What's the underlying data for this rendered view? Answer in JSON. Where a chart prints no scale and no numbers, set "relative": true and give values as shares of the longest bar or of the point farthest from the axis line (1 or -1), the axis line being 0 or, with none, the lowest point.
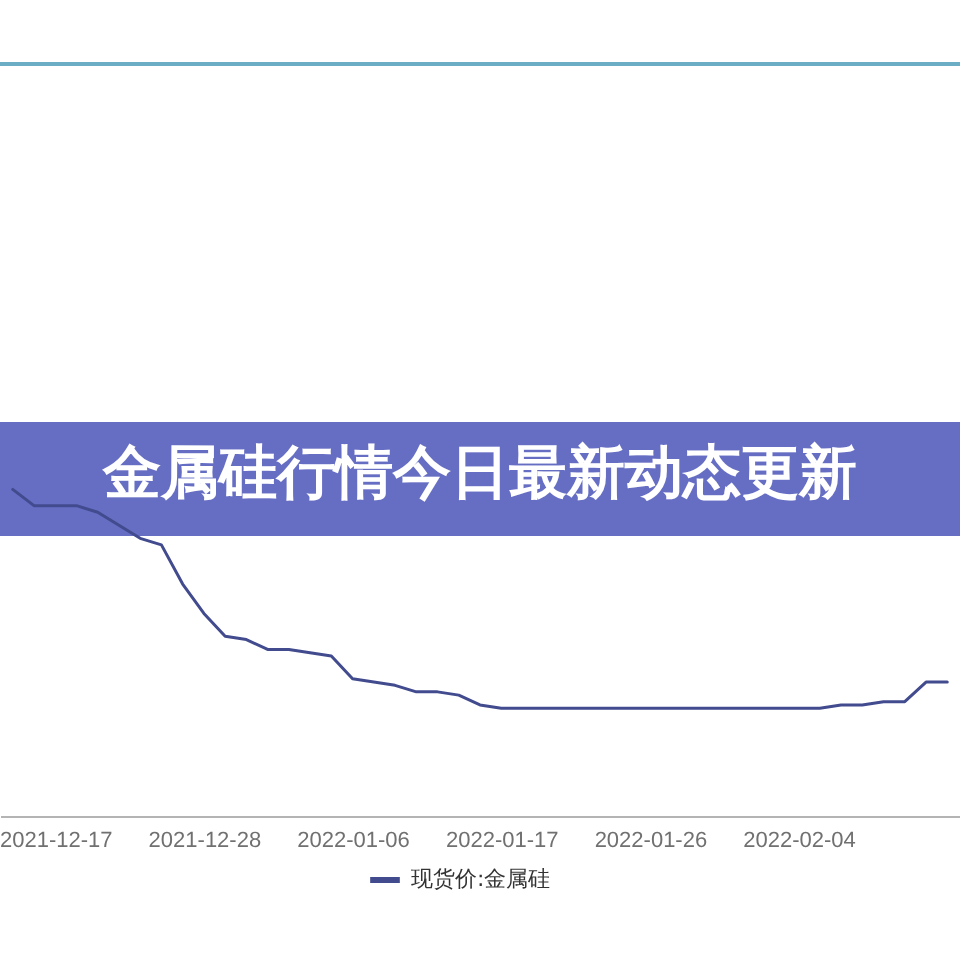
{
  "chart_data": {
    "type": "line",
    "title": "金属硅行情今日最新动态更新",
    "categories": [
      null,
      null,
      "2021-12-17",
      null,
      null,
      null,
      null,
      null,
      null,
      "2021-12-28",
      null,
      null,
      null,
      null,
      null,
      null,
      "2022-01-06",
      null,
      null,
      null,
      null,
      null,
      null,
      "2022-01-17",
      null,
      null,
      null,
      null,
      null,
      null,
      "2022-01-26",
      null,
      null,
      null,
      null,
      null,
      null,
      "2022-02-04",
      null,
      null,
      null,
      null,
      null,
      null,
      null
    ],
    "series": [
      {
        "name": "现货价:金属硅",
        "color": "#414b8e",
        "values": [
          1.0,
          0.95,
          0.95,
          0.95,
          0.93,
          0.89,
          0.85,
          0.83,
          0.71,
          0.62,
          0.55,
          0.54,
          0.51,
          0.51,
          0.5,
          0.49,
          0.42,
          0.41,
          0.4,
          0.38,
          0.38,
          0.37,
          0.34,
          0.33,
          0.33,
          0.33,
          0.33,
          0.33,
          0.33,
          0.33,
          0.33,
          0.33,
          0.33,
          0.33,
          0.33,
          0.33,
          0.33,
          0.33,
          0.33,
          0.34,
          0.34,
          0.35,
          0.35,
          0.41,
          0.41
        ]
      }
    ],
    "relative": true,
    "legend": "bottom"
  }
}
